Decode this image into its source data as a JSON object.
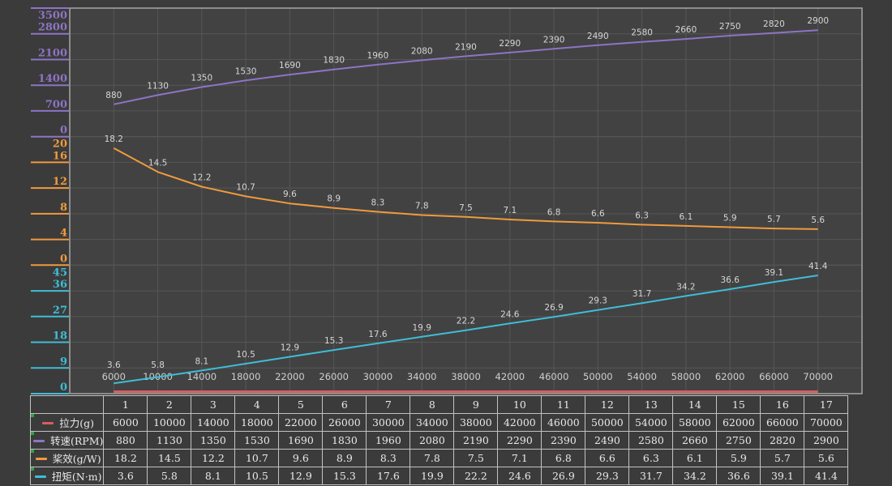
{
  "colors": {
    "thrust": "#d65f5f",
    "rpm": "#8d74c4",
    "efficiency": "#f09a3e",
    "torque": "#3fbdd6",
    "page_bg": "#3b3b3b",
    "plot_bg": "#424242",
    "grid": "#565656",
    "plot_border": "#a6a6a6",
    "data_label": "#d6d6d6",
    "x_label": "#cfcfcf",
    "table_border": "#c2c2c2",
    "table_text": "#e9e9e9",
    "flag_green": "#2fa344"
  },
  "chart_data": {
    "type": "line",
    "title": "",
    "grid": true,
    "x_tick_labels": [
      "6000",
      "10000",
      "14000",
      "18000",
      "22000",
      "26000",
      "30000",
      "34000",
      "38000",
      "42000",
      "46000",
      "50000",
      "54000",
      "58000",
      "62000",
      "66000",
      "70000"
    ],
    "sections": [
      {
        "color_key": "rpm",
        "max": 3500,
        "ticks": [
          3500,
          2800,
          2100,
          1400,
          700,
          0
        ]
      },
      {
        "color_key": "efficiency",
        "max": 20,
        "ticks": [
          20,
          16,
          12,
          8,
          4,
          0
        ]
      },
      {
        "color_key": "torque",
        "max": 45,
        "ticks": [
          45,
          36,
          27,
          18,
          9,
          0
        ]
      }
    ],
    "series": [
      {
        "name": "拉力(g)",
        "key": "thrust",
        "render": "flat-bottom",
        "data_labels": false,
        "values": [
          6000,
          10000,
          14000,
          18000,
          22000,
          26000,
          30000,
          34000,
          38000,
          42000,
          46000,
          50000,
          54000,
          58000,
          62000,
          66000,
          70000
        ]
      },
      {
        "name": "转速(RPM)",
        "key": "rpm",
        "section": 0,
        "data_labels": true,
        "values": [
          880,
          1130,
          1350,
          1530,
          1690,
          1830,
          1960,
          2080,
          2190,
          2290,
          2390,
          2490,
          2580,
          2660,
          2750,
          2820,
          2900
        ]
      },
      {
        "name": "桨效(g/W)",
        "key": "efficiency",
        "section": 1,
        "data_labels": true,
        "values": [
          18.2,
          14.5,
          12.2,
          10.7,
          9.6,
          8.9,
          8.3,
          7.8,
          7.5,
          7.1,
          6.8,
          6.6,
          6.3,
          6.1,
          5.9,
          5.7,
          5.6
        ]
      },
      {
        "name": "扭矩(N·m)",
        "key": "torque",
        "section": 2,
        "data_labels": true,
        "values": [
          3.6,
          5.8,
          8.1,
          10.5,
          12.9,
          15.3,
          17.6,
          19.9,
          22.2,
          24.6,
          26.9,
          29.3,
          31.7,
          34.2,
          36.6,
          39.1,
          41.4
        ]
      }
    ]
  },
  "table": {
    "corner_label": "",
    "col_headers": [
      "1",
      "2",
      "3",
      "4",
      "5",
      "6",
      "7",
      "8",
      "9",
      "10",
      "11",
      "12",
      "13",
      "14",
      "15",
      "16",
      "17"
    ],
    "row_labels": [
      {
        "key": "thrust",
        "label": "拉力(g)"
      },
      {
        "key": "rpm",
        "label": "转速(RPM)"
      },
      {
        "key": "efficiency",
        "label": "桨效(g/W)"
      },
      {
        "key": "torque",
        "label": "扭矩(N·m)"
      }
    ]
  }
}
